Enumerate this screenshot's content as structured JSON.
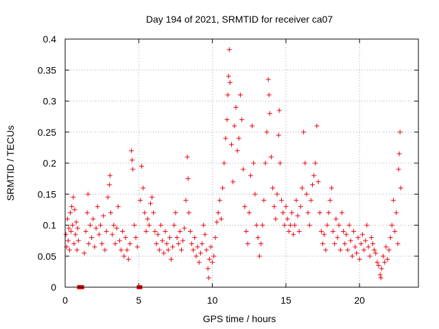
{
  "chart_data": {
    "type": "scatter",
    "title": "Day 194 of 2021, SRMTID for receiver ca07",
    "xlabel": "GPS time / hours",
    "ylabel": "SRMTID / TECUs",
    "xlim": [
      0,
      24
    ],
    "ylim": [
      0,
      0.4
    ],
    "x_ticks": [
      0,
      5,
      10,
      15,
      20
    ],
    "x_tick_labels": [
      "0",
      "5",
      "10",
      "15",
      "20"
    ],
    "y_ticks": [
      0,
      0.05,
      0.1,
      0.15,
      0.2,
      0.25,
      0.3,
      0.35,
      0.4
    ],
    "y_tick_labels": [
      "0",
      "0.05",
      "0.1",
      "0.15",
      "0.2",
      "0.25",
      "0.3",
      "0.35",
      "0.4"
    ],
    "grid": true,
    "marker": "+",
    "series": [
      {
        "name": "ca07",
        "color": "#e8000b",
        "points": [
          [
            0.05,
            0.085
          ],
          [
            0.1,
            0.065
          ],
          [
            0.15,
            0.11
          ],
          [
            0.2,
            0.075
          ],
          [
            0.25,
            0.095
          ],
          [
            0.3,
            0.06
          ],
          [
            0.35,
            0.12
          ],
          [
            0.4,
            0.09
          ],
          [
            0.45,
            0.13
          ],
          [
            0.5,
            0.1
          ],
          [
            0.55,
            0.145
          ],
          [
            0.6,
            0.07
          ],
          [
            0.65,
            0.125
          ],
          [
            0.7,
            0.085
          ],
          [
            0.75,
            0.105
          ],
          [
            0.8,
            0.06
          ],
          [
            0.85,
            0.095
          ],
          [
            0.9,
            0.075
          ],
          [
            1.0,
            0.0
          ],
          [
            1.1,
            0.0
          ],
          [
            1.3,
            0.055
          ],
          [
            1.4,
            0.09
          ],
          [
            1.5,
            0.12
          ],
          [
            1.55,
            0.15
          ],
          [
            1.6,
            0.07
          ],
          [
            1.7,
            0.1
          ],
          [
            1.8,
            0.08
          ],
          [
            1.9,
            0.11
          ],
          [
            2.0,
            0.065
          ],
          [
            2.1,
            0.095
          ],
          [
            2.2,
            0.13
          ],
          [
            2.3,
            0.085
          ],
          [
            2.4,
            0.1
          ],
          [
            2.5,
            0.07
          ],
          [
            2.6,
            0.115
          ],
          [
            2.7,
            0.06
          ],
          [
            2.8,
            0.09
          ],
          [
            2.9,
            0.145
          ],
          [
            3.0,
            0.165
          ],
          [
            3.05,
            0.18
          ],
          [
            3.1,
            0.12
          ],
          [
            3.2,
            0.085
          ],
          [
            3.3,
            0.1
          ],
          [
            3.4,
            0.07
          ],
          [
            3.5,
            0.095
          ],
          [
            3.6,
            0.13
          ],
          [
            3.7,
            0.075
          ],
          [
            3.8,
            0.06
          ],
          [
            3.9,
            0.09
          ],
          [
            4.0,
            0.05
          ],
          [
            4.1,
            0.08
          ],
          [
            4.2,
            0.06
          ],
          [
            4.3,
            0.045
          ],
          [
            4.4,
            0.07
          ],
          [
            4.5,
            0.22
          ],
          [
            4.55,
            0.205
          ],
          [
            4.6,
            0.19
          ],
          [
            4.7,
            0.1
          ],
          [
            4.8,
            0.08
          ],
          [
            4.9,
            0.065
          ],
          [
            5.05,
            0.0
          ],
          [
            5.1,
            0.14
          ],
          [
            5.2,
            0.195
          ],
          [
            5.3,
            0.16
          ],
          [
            5.4,
            0.12
          ],
          [
            5.5,
            0.09
          ],
          [
            5.6,
            0.11
          ],
          [
            5.7,
            0.1
          ],
          [
            5.8,
            0.135
          ],
          [
            5.9,
            0.145
          ],
          [
            6.0,
            0.12
          ],
          [
            6.1,
            0.09
          ],
          [
            6.2,
            0.07
          ],
          [
            6.3,
            0.085
          ],
          [
            6.4,
            0.06
          ],
          [
            6.5,
            0.1
          ],
          [
            6.6,
            0.075
          ],
          [
            6.7,
            0.055
          ],
          [
            6.8,
            0.09
          ],
          [
            6.9,
            0.07
          ],
          [
            7.0,
            0.06
          ],
          [
            7.1,
            0.08
          ],
          [
            7.2,
            0.045
          ],
          [
            7.3,
            0.065
          ],
          [
            7.4,
            0.1
          ],
          [
            7.5,
            0.12
          ],
          [
            7.6,
            0.08
          ],
          [
            7.7,
            0.07
          ],
          [
            7.8,
            0.09
          ],
          [
            7.9,
            0.06
          ],
          [
            8.0,
            0.075
          ],
          [
            8.1,
            0.095
          ],
          [
            8.2,
            0.14
          ],
          [
            8.3,
            0.21
          ],
          [
            8.35,
            0.175
          ],
          [
            8.4,
            0.12
          ],
          [
            8.5,
            0.09
          ],
          [
            8.6,
            0.07
          ],
          [
            8.7,
            0.06
          ],
          [
            8.8,
            0.08
          ],
          [
            8.9,
            0.05
          ],
          [
            9.0,
            0.065
          ],
          [
            9.1,
            0.04
          ],
          [
            9.2,
            0.055
          ],
          [
            9.3,
            0.07
          ],
          [
            9.4,
            0.1
          ],
          [
            9.5,
            0.085
          ],
          [
            9.6,
            0.06
          ],
          [
            9.7,
            0.03
          ],
          [
            9.75,
            0.015
          ],
          [
            9.8,
            0.045
          ],
          [
            9.9,
            0.065
          ],
          [
            10.0,
            0.04
          ],
          [
            10.1,
            0.05
          ],
          [
            10.2,
            0.08
          ],
          [
            10.3,
            0.105
          ],
          [
            10.4,
            0.12
          ],
          [
            10.5,
            0.14
          ],
          [
            10.6,
            0.11
          ],
          [
            10.7,
            0.16
          ],
          [
            10.8,
            0.2
          ],
          [
            10.9,
            0.24
          ],
          [
            11.0,
            0.27
          ],
          [
            11.05,
            0.31
          ],
          [
            11.1,
            0.34
          ],
          [
            11.15,
            0.383
          ],
          [
            11.2,
            0.33
          ],
          [
            11.3,
            0.23
          ],
          [
            11.4,
            0.17
          ],
          [
            11.5,
            0.26
          ],
          [
            11.6,
            0.29
          ],
          [
            11.7,
            0.22
          ],
          [
            11.8,
            0.24
          ],
          [
            11.9,
            0.31
          ],
          [
            12.0,
            0.27
          ],
          [
            12.1,
            0.19
          ],
          [
            12.2,
            0.13
          ],
          [
            12.3,
            0.09
          ],
          [
            12.4,
            0.07
          ],
          [
            12.5,
            0.12
          ],
          [
            12.6,
            0.18
          ],
          [
            12.7,
            0.26
          ],
          [
            12.8,
            0.2
          ],
          [
            12.9,
            0.15
          ],
          [
            13.0,
            0.1
          ],
          [
            13.1,
            0.08
          ],
          [
            13.2,
            0.05
          ],
          [
            13.3,
            0.07
          ],
          [
            13.4,
            0.1
          ],
          [
            13.5,
            0.14
          ],
          [
            13.6,
            0.2
          ],
          [
            13.7,
            0.25
          ],
          [
            13.8,
            0.335
          ],
          [
            13.85,
            0.31
          ],
          [
            13.9,
            0.28
          ],
          [
            14.0,
            0.21
          ],
          [
            14.1,
            0.16
          ],
          [
            14.2,
            0.13
          ],
          [
            14.3,
            0.11
          ],
          [
            14.4,
            0.15
          ],
          [
            14.5,
            0.245
          ],
          [
            14.55,
            0.285
          ],
          [
            14.6,
            0.2
          ],
          [
            14.7,
            0.14
          ],
          [
            14.8,
            0.12
          ],
          [
            14.9,
            0.1
          ],
          [
            15.0,
            0.13
          ],
          [
            15.1,
            0.11
          ],
          [
            15.2,
            0.09
          ],
          [
            15.3,
            0.1
          ],
          [
            15.4,
            0.12
          ],
          [
            15.5,
            0.085
          ],
          [
            15.6,
            0.1
          ],
          [
            15.7,
            0.14
          ],
          [
            15.8,
            0.115
          ],
          [
            15.9,
            0.09
          ],
          [
            16.0,
            0.13
          ],
          [
            16.1,
            0.16
          ],
          [
            16.2,
            0.25
          ],
          [
            16.3,
            0.2
          ],
          [
            16.4,
            0.15
          ],
          [
            16.5,
            0.12
          ],
          [
            16.6,
            0.1
          ],
          [
            16.7,
            0.14
          ],
          [
            16.8,
            0.165
          ],
          [
            16.9,
            0.18
          ],
          [
            17.0,
            0.2
          ],
          [
            17.1,
            0.26
          ],
          [
            17.2,
            0.17
          ],
          [
            17.3,
            0.12
          ],
          [
            17.4,
            0.09
          ],
          [
            17.5,
            0.07
          ],
          [
            17.6,
            0.085
          ],
          [
            17.7,
            0.06
          ],
          [
            17.8,
            0.1
          ],
          [
            17.9,
            0.12
          ],
          [
            18.0,
            0.14
          ],
          [
            18.1,
            0.16
          ],
          [
            18.2,
            0.09
          ],
          [
            18.3,
            0.07
          ],
          [
            18.4,
            0.11
          ],
          [
            18.5,
            0.08
          ],
          [
            18.6,
            0.1
          ],
          [
            18.7,
            0.06
          ],
          [
            18.8,
            0.12
          ],
          [
            18.9,
            0.09
          ],
          [
            19.0,
            0.07
          ],
          [
            19.1,
            0.085
          ],
          [
            19.2,
            0.06
          ],
          [
            19.3,
            0.1
          ],
          [
            19.4,
            0.075
          ],
          [
            19.5,
            0.05
          ],
          [
            19.6,
            0.09
          ],
          [
            19.7,
            0.065
          ],
          [
            19.8,
            0.055
          ],
          [
            19.9,
            0.08
          ],
          [
            20.0,
            0.045
          ],
          [
            20.1,
            0.07
          ],
          [
            20.2,
            0.085
          ],
          [
            20.3,
            0.06
          ],
          [
            20.4,
            0.075
          ],
          [
            20.5,
            0.1
          ],
          [
            20.6,
            0.065
          ],
          [
            20.7,
            0.05
          ],
          [
            20.8,
            0.08
          ],
          [
            20.9,
            0.07
          ],
          [
            21.0,
            0.06
          ],
          [
            21.1,
            0.055
          ],
          [
            21.2,
            0.04
          ],
          [
            21.3,
            0.035
          ],
          [
            21.4,
            0.02
          ],
          [
            21.45,
            0.015
          ],
          [
            21.5,
            0.03
          ],
          [
            21.6,
            0.05
          ],
          [
            21.7,
            0.04
          ],
          [
            21.8,
            0.065
          ],
          [
            21.9,
            0.045
          ],
          [
            22.0,
            0.06
          ],
          [
            22.1,
            0.08
          ],
          [
            22.2,
            0.1
          ],
          [
            22.3,
            0.14
          ],
          [
            22.4,
            0.09
          ],
          [
            22.5,
            0.12
          ],
          [
            22.6,
            0.07
          ],
          [
            22.65,
            0.19
          ],
          [
            22.7,
            0.215
          ],
          [
            22.75,
            0.25
          ],
          [
            22.8,
            0.16
          ]
        ]
      }
    ]
  }
}
